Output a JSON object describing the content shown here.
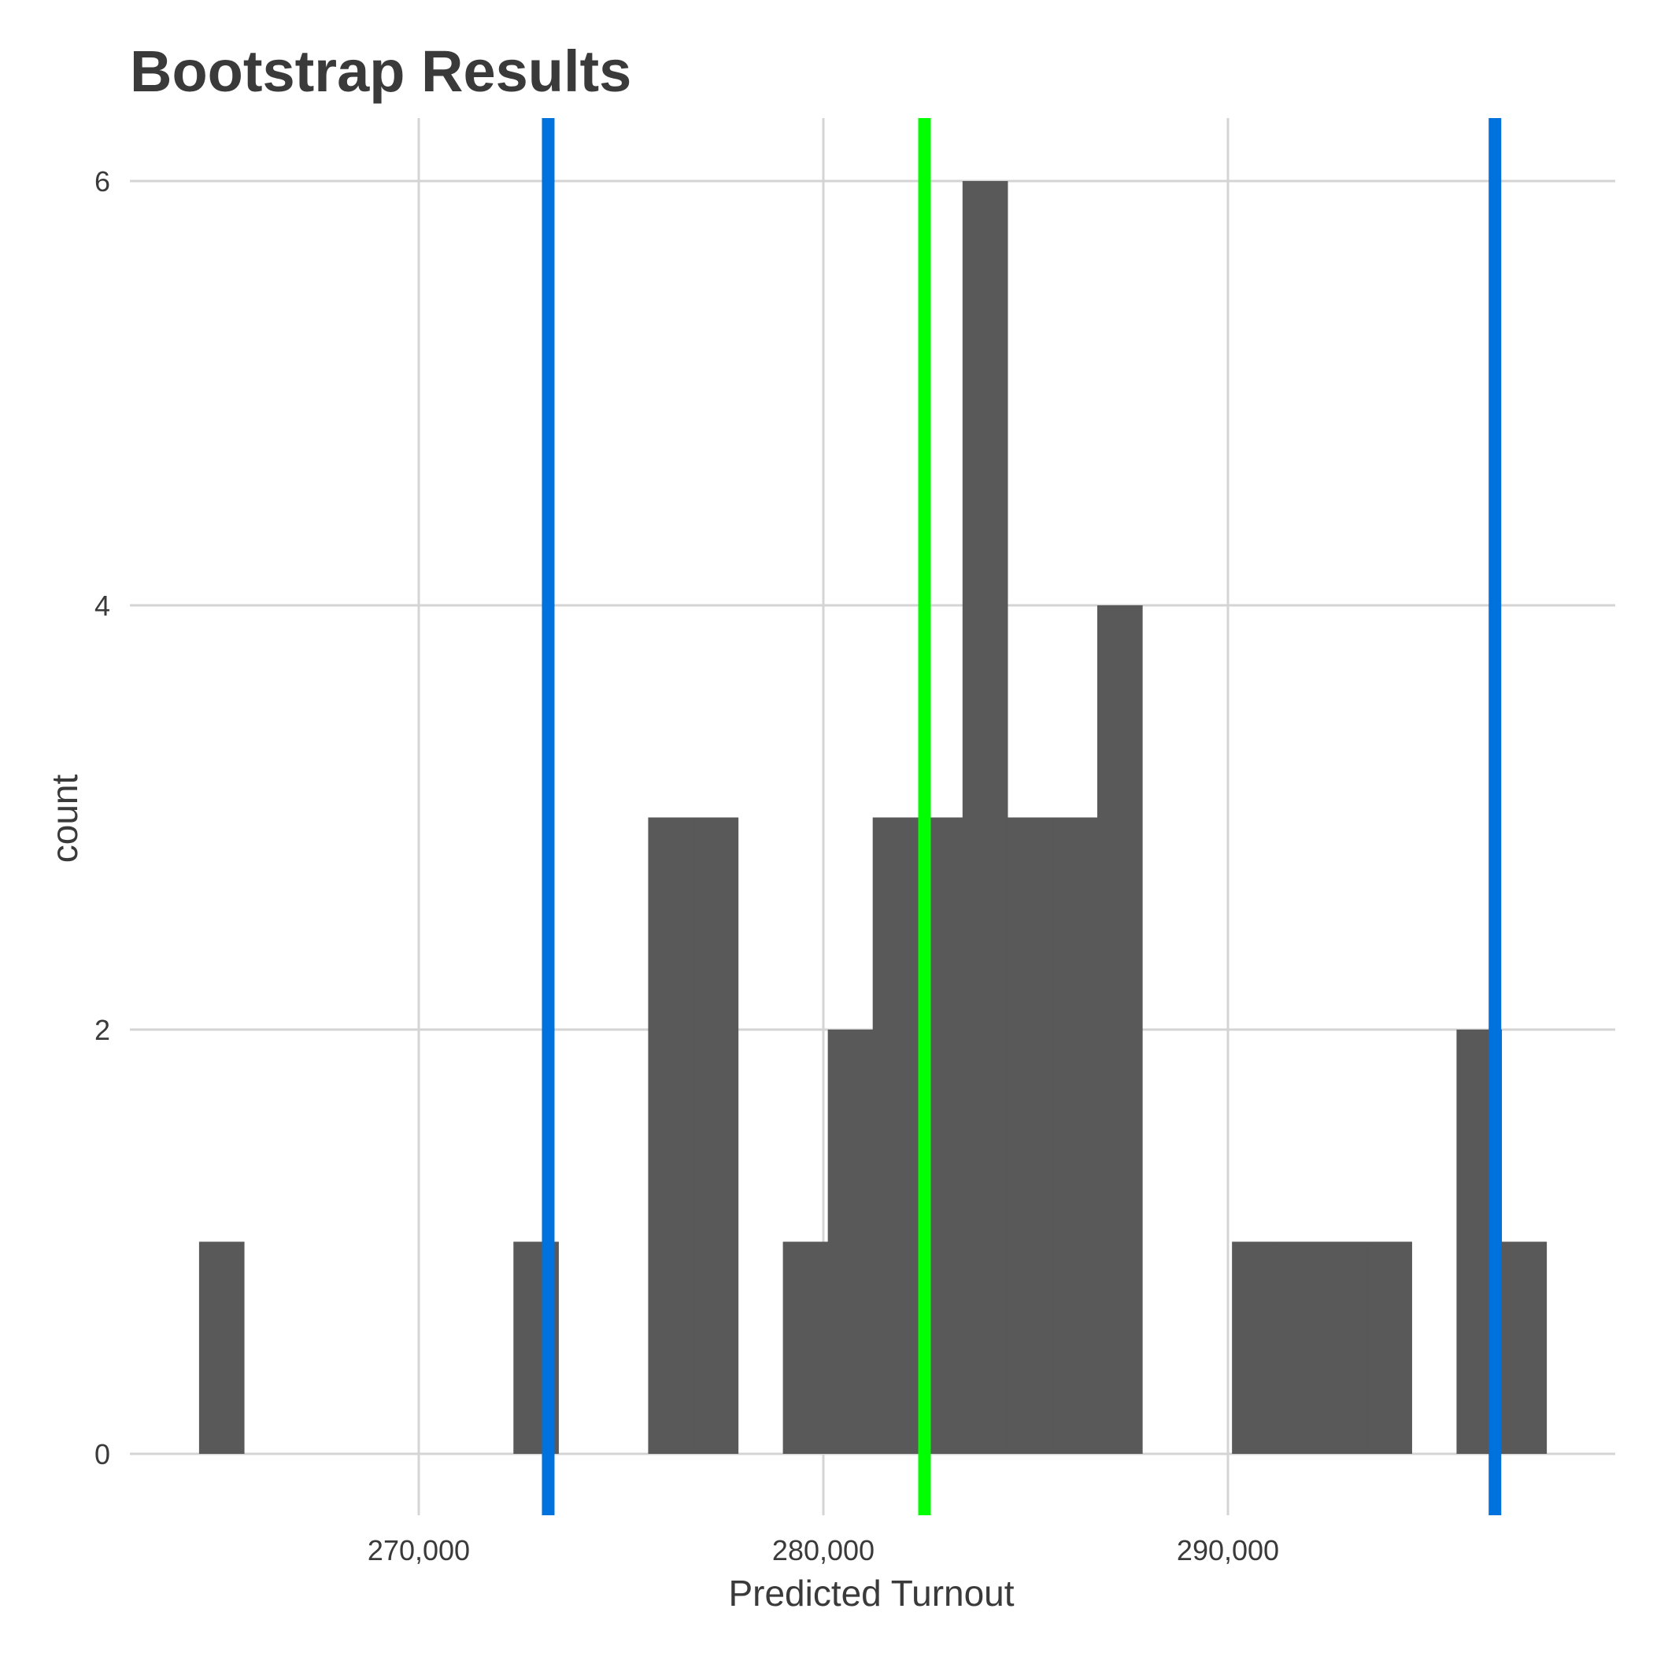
{
  "chart_data": {
    "type": "bar",
    "title": "Bootstrap Results",
    "xlabel": "Predicted Turnout",
    "ylabel": "count",
    "grid": true,
    "legend": "none",
    "xlim": [
      262900,
      299900
    ],
    "ylim": [
      -0.3,
      6.3
    ],
    "x_ticks": [
      270000,
      280000,
      290000
    ],
    "x_tick_labels": [
      "270,000",
      "280,000",
      "290,000"
    ],
    "y_ticks": [
      0,
      2,
      4,
      6
    ],
    "y_tick_labels": [
      "0",
      "2",
      "4",
      "6"
    ],
    "bin_width": 1110,
    "bins": [
      {
        "x0": 264570,
        "x1": 265680,
        "count": 1
      },
      {
        "x0": 272340,
        "x1": 273450,
        "count": 1
      },
      {
        "x0": 275670,
        "x1": 276780,
        "count": 3
      },
      {
        "x0": 276780,
        "x1": 277890,
        "count": 3
      },
      {
        "x0": 279000,
        "x1": 280110,
        "count": 1
      },
      {
        "x0": 280110,
        "x1": 281220,
        "count": 2
      },
      {
        "x0": 281220,
        "x1": 282330,
        "count": 3
      },
      {
        "x0": 282330,
        "x1": 283440,
        "count": 3
      },
      {
        "x0": 283440,
        "x1": 284550,
        "count": 6
      },
      {
        "x0": 284550,
        "x1": 285660,
        "count": 3
      },
      {
        "x0": 285660,
        "x1": 286770,
        "count": 3
      },
      {
        "x0": 286770,
        "x1": 287880,
        "count": 4
      },
      {
        "x0": 290100,
        "x1": 291210,
        "count": 1
      },
      {
        "x0": 291210,
        "x1": 292320,
        "count": 1
      },
      {
        "x0": 292320,
        "x1": 293430,
        "count": 1
      },
      {
        "x0": 293430,
        "x1": 294540,
        "count": 1
      },
      {
        "x0": 295650,
        "x1": 296760,
        "count": 2
      },
      {
        "x0": 296760,
        "x1": 297870,
        "count": 1
      }
    ],
    "vlines": [
      {
        "x": 273200,
        "color": "#0072dd"
      },
      {
        "x": 282500,
        "color": "#00ff00"
      },
      {
        "x": 296600,
        "color": "#0072dd"
      }
    ],
    "colors": {
      "bar": "#595959",
      "grid": "#d4d4d4",
      "text": "#3a3a3a"
    }
  }
}
